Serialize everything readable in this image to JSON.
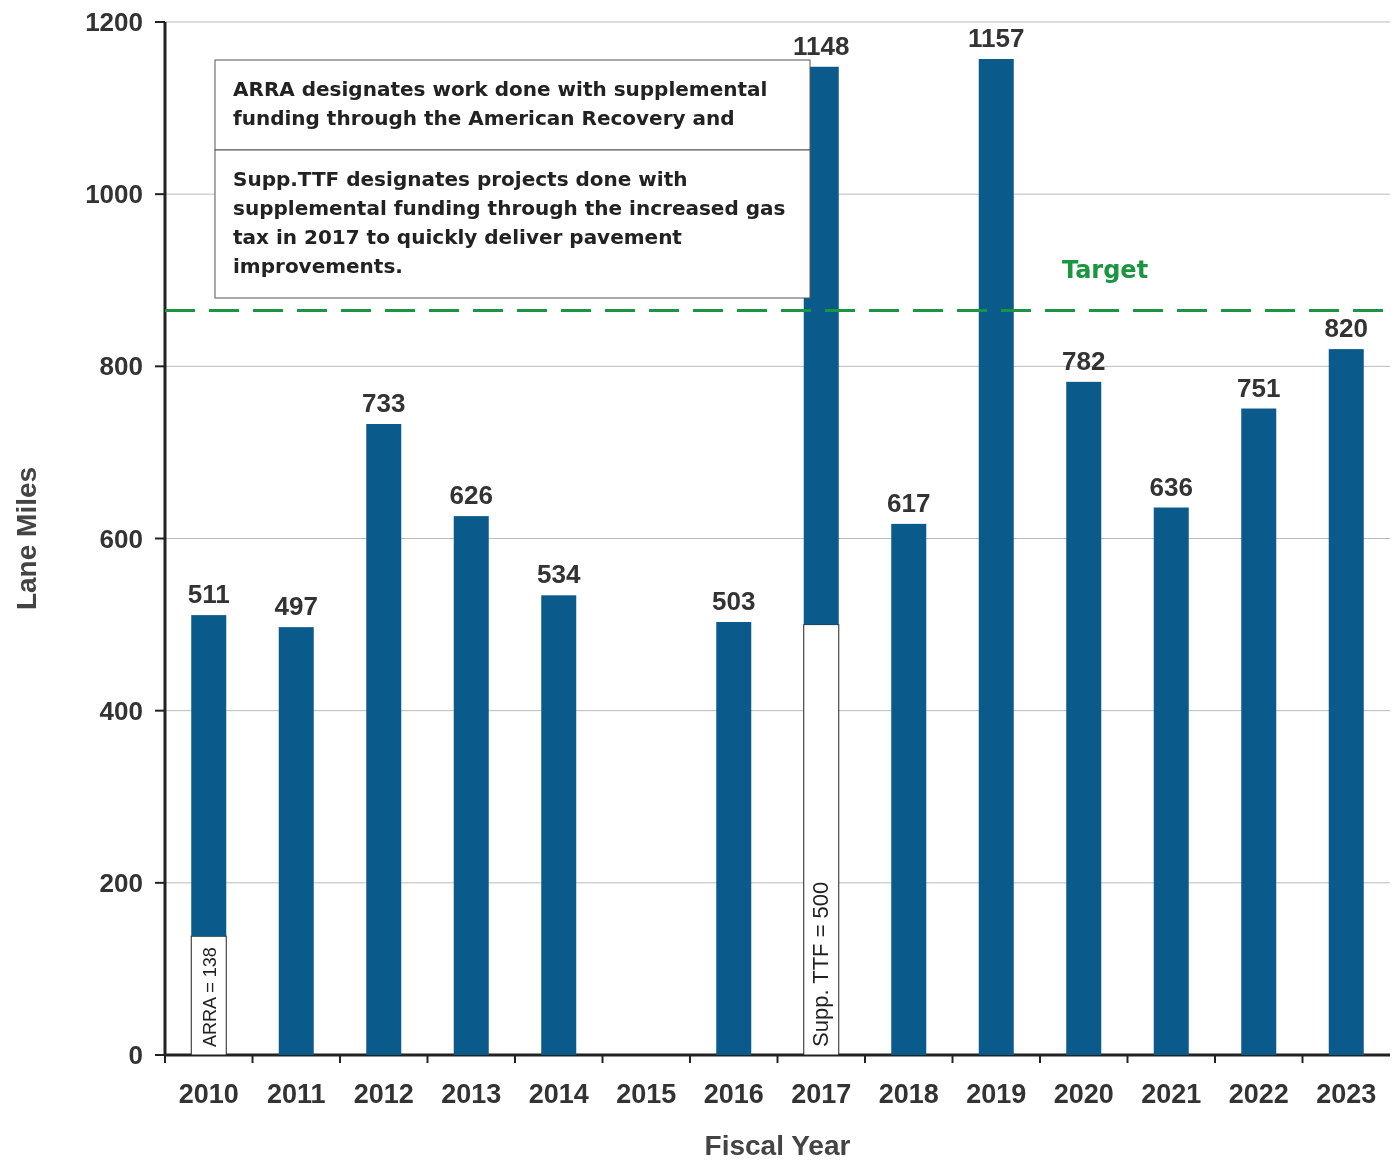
{
  "chart_data": {
    "type": "bar",
    "stacked": true,
    "xlabel": "Fiscal Year",
    "ylabel": "Lane Miles",
    "categories": [
      "2010",
      "2011",
      "2012",
      "2013",
      "2014",
      "2015",
      "2016",
      "2017",
      "2018",
      "2019",
      "2020",
      "2021",
      "2022",
      "2023"
    ],
    "series": [
      {
        "color": "#ffffff",
        "values": [
          138,
          null,
          null,
          null,
          null,
          null,
          null,
          500,
          null,
          null,
          null,
          null,
          null,
          null
        ],
        "value_labels": [
          "ARRA = 138",
          null,
          null,
          null,
          null,
          null,
          null,
          "Supp. TTF = 500",
          null,
          null,
          null,
          null,
          null,
          null
        ]
      },
      {
        "color": "#0b5a8c",
        "values": [
          373,
          497,
          733,
          626,
          534,
          null,
          503,
          648,
          617,
          1157,
          782,
          636,
          751,
          820
        ]
      }
    ],
    "totals": [
      "511",
      "497",
      "733",
      "626",
      "534",
      null,
      "503",
      "1148",
      "617",
      "1157",
      "782",
      "636",
      "751",
      "820"
    ],
    "ylim": [
      0,
      1200
    ],
    "yticks": [
      0,
      200,
      400,
      600,
      800,
      1000,
      1200
    ],
    "grid": "y",
    "ref_lines": [
      {
        "axis": "y",
        "value": 865,
        "label": "Target",
        "color": "#1a9641",
        "line_style": "dashed"
      }
    ],
    "annotations": [
      "ARRA designates work done with supplemental funding through the American Recovery and",
      "Supp.TTF designates projects done with supplemental funding through the increased gas tax in 2017 to quickly deliver pavement improvements."
    ]
  }
}
